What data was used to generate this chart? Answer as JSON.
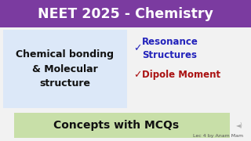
{
  "bg_color": "#f2f2f2",
  "header_bg": "#7B3BA0",
  "header_text": "NEET 2025 - Chemistry",
  "header_text_color": "#ffffff",
  "left_box_bg": "#dce8f8",
  "left_box_text": "Chemical bonding\n& Molecular\nstructure",
  "left_box_text_color": "#111111",
  "check1_color": "#2222bb",
  "check2_color": "#aa1111",
  "resonance_text": "Resonance\nStructures",
  "resonance_color": "#2222bb",
  "dipole_text": "Dipole Moment",
  "dipole_color": "#aa1111",
  "bottom_box_bg": "#c8dfa8",
  "bottom_box_text": "Concepts with MCQs",
  "bottom_box_text_color": "#111111",
  "footer_text": "Lec 4 by Anam Mam",
  "footer_color": "#555555",
  "speaker_color": "#aaaaaa"
}
